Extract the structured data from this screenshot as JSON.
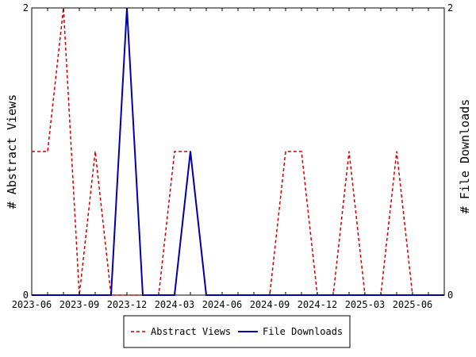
{
  "chart_data": {
    "type": "line",
    "title": "",
    "x": [
      "2023-06",
      "2023-07",
      "2023-08",
      "2023-09",
      "2023-10",
      "2023-11",
      "2023-12",
      "2024-01",
      "2024-02",
      "2024-03",
      "2024-04",
      "2024-05",
      "2024-06",
      "2024-07",
      "2024-08",
      "2024-09",
      "2024-10",
      "2024-11",
      "2024-12",
      "2025-01",
      "2025-02",
      "2025-03",
      "2025-04",
      "2025-05",
      "2025-06",
      "2025-07",
      "2025-08"
    ],
    "x_tick_labels": [
      "2023-06",
      "2023-09",
      "2023-12",
      "2024-03",
      "2024-06",
      "2024-09",
      "2024-12",
      "2025-03",
      "2025-06"
    ],
    "series": [
      {
        "name": "Abstract Views",
        "axis": "left",
        "color": "#cc0000",
        "dash": "dashed",
        "values": [
          1,
          1,
          2,
          0,
          1,
          0,
          0,
          0,
          0,
          1,
          1,
          0,
          0,
          0,
          0,
          0,
          1,
          1,
          0,
          0,
          1,
          0,
          0,
          1,
          0,
          0,
          0
        ]
      },
      {
        "name": "File Downloads",
        "axis": "right",
        "color": "#0000aa",
        "dash": "solid",
        "values": [
          0,
          0,
          0,
          0,
          0,
          0,
          2,
          0,
          0,
          0,
          1,
          0,
          0,
          0,
          0,
          0,
          0,
          0,
          0,
          0,
          0,
          0,
          0,
          0,
          0,
          0,
          0
        ]
      }
    ],
    "ylabel_left": "# Abstract Views",
    "ylabel_right": "# File Downloads",
    "ylim_left": [
      0,
      2
    ],
    "ylim_right": [
      0,
      2
    ],
    "y_ticks_left": [
      "0",
      "2"
    ],
    "y_ticks_right": [
      "0",
      "2"
    ],
    "grid": false,
    "legend_position": "bottom"
  }
}
